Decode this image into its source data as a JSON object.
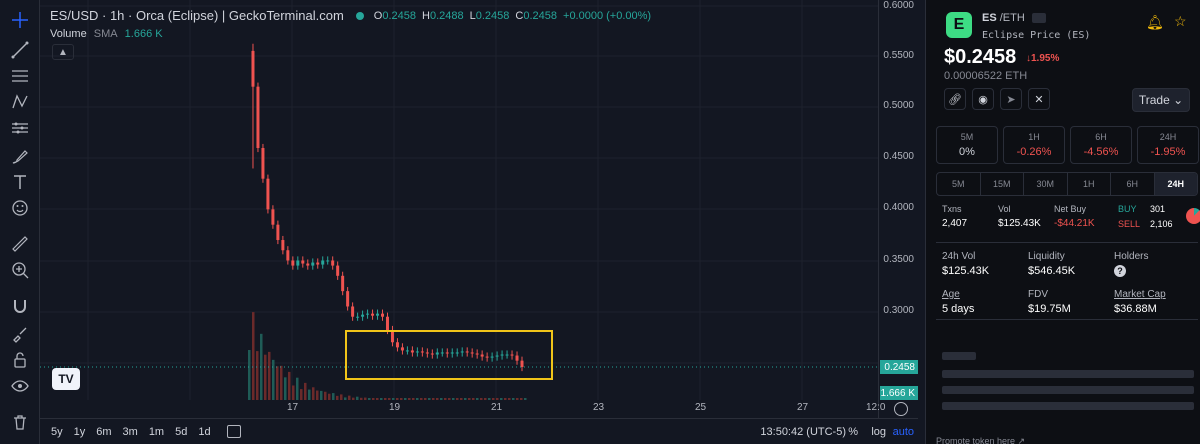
{
  "header": {
    "title": "ES/USD · 1h · Orca (Eclipse) | GeckoTerminal.com",
    "ohlc": [
      {
        "k": "O",
        "v": "0.2458"
      },
      {
        "k": "H",
        "v": "0.2488"
      },
      {
        "k": "L",
        "v": "0.2458"
      },
      {
        "k": "C",
        "v": "0.2458"
      }
    ],
    "change": "+0.0000 (+0.00%)",
    "volume_label": "Volume",
    "volume_sma": "SMA",
    "volume_value": "1.666 K"
  },
  "price_scale": {
    "ticks": [
      "0.6000",
      "0.5500",
      "0.5000",
      "0.4500",
      "0.4000",
      "0.3500",
      "0.3000"
    ],
    "current_price": "0.2458",
    "volume_tag": "1.666 K"
  },
  "time_axis": {
    "ticks": [
      "17",
      "19",
      "21",
      "23",
      "25",
      "27",
      "12:0"
    ]
  },
  "bottom_bar": {
    "ranges": [
      "5y",
      "1y",
      "6m",
      "3m",
      "1m",
      "5d",
      "1d"
    ],
    "clock": "13:50:42 (UTC-5)",
    "percent_label": "%",
    "log_label": "log",
    "auto_label": "auto"
  },
  "chart_data": {
    "type": "candlestick",
    "interval": "1h",
    "note_x": "hours",
    "price_series": [
      0.555,
      0.52,
      0.46,
      0.43,
      0.4,
      0.385,
      0.37,
      0.36,
      0.35,
      0.345,
      0.35,
      0.347,
      0.345,
      0.348,
      0.346,
      0.35,
      0.35,
      0.345,
      0.335,
      0.32,
      0.305,
      0.295,
      0.295,
      0.297,
      0.298,
      0.296,
      0.298,
      0.295,
      0.282,
      0.27,
      0.265,
      0.262,
      0.262,
      0.26,
      0.261,
      0.26,
      0.259,
      0.258,
      0.26,
      0.26,
      0.259,
      0.26,
      0.26,
      0.261,
      0.26,
      0.259,
      0.258,
      0.256,
      0.255,
      0.256,
      0.257,
      0.258,
      0.258,
      0.257,
      0.252,
      0.2458
    ],
    "ylim": [
      0.24,
      0.605
    ],
    "x_ticks": [
      "17",
      "19",
      "21",
      "23",
      "25",
      "27",
      "12:0"
    ],
    "highlight": "consolidation box"
  },
  "panel": {
    "logo_letter": "E",
    "pair_base": "ES",
    "pair_quote": "/ETH",
    "token_name": "Eclipse Price (ES)",
    "price": "$0.2458",
    "price_change": "↓1.95%",
    "price_eth": "0.00006522 ETH",
    "trade_label": "Trade",
    "timeframes": [
      {
        "label": "5M",
        "value": "0%"
      },
      {
        "label": "1H",
        "value": "-0.26%"
      },
      {
        "label": "6H",
        "value": "-4.56%"
      },
      {
        "label": "24H",
        "value": "-1.95%"
      }
    ],
    "tabs": [
      "5M",
      "15M",
      "30M",
      "1H",
      "6H",
      "24H"
    ],
    "txns_label": "Txns",
    "txns_value": "2,407",
    "vol_label": "Vol",
    "vol_value": "$125.43K",
    "netbuy_label": "Net Buy",
    "netbuy_value": "-$44.21K",
    "buy_label": "BUY",
    "buy_value": "301",
    "sell_label": "SELL",
    "sell_value": "2,106",
    "stats": [
      {
        "label": "24h Vol",
        "value": "$125.43K"
      },
      {
        "label": "Liquidity",
        "value": "$546.45K"
      },
      {
        "label": "Holders",
        "value": ""
      },
      {
        "label": "Age",
        "value": "5 days"
      },
      {
        "label": "FDV",
        "value": "$19.75M"
      },
      {
        "label": "Market Cap",
        "value": "$36.88M"
      }
    ],
    "promote": "Promote token here ↗"
  },
  "colors": {
    "up": "#26a69a",
    "down": "#ef5350",
    "highlight_box": "#f0c419"
  }
}
